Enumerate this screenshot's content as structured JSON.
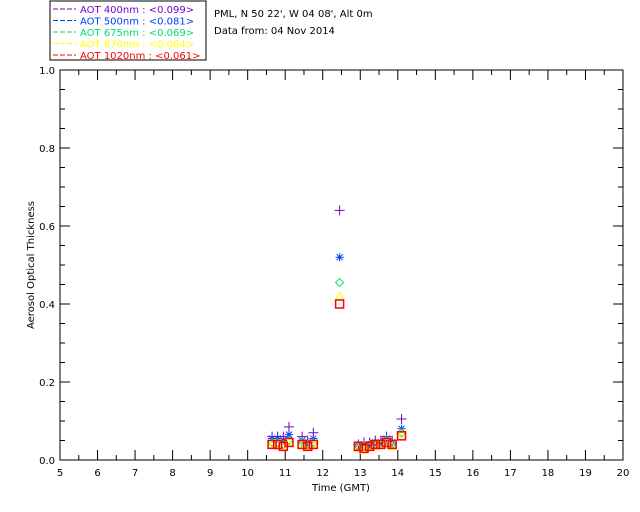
{
  "header": {
    "location": "PML, N 50 22', W 04 08', Alt 0m",
    "date": "Data from: 04 Nov 2014"
  },
  "chart_data": {
    "type": "scatter",
    "title": "",
    "xlabel": "Time (GMT)",
    "ylabel": "Aerosol Optical Thickness",
    "xlim": [
      5,
      20
    ],
    "ylim": [
      0,
      1.0
    ],
    "xticks": [
      "5",
      "6",
      "7",
      "8",
      "9",
      "10",
      "11",
      "12",
      "13",
      "14",
      "15",
      "16",
      "17",
      "18",
      "19",
      "20"
    ],
    "yticks": [
      "0.0",
      "0.2",
      "0.4",
      "0.6",
      "0.8",
      "1.0"
    ],
    "legend_position": "top-left-outside",
    "x": [
      10.65,
      10.8,
      10.95,
      11.1,
      11.45,
      11.6,
      11.75,
      12.45,
      12.95,
      13.1,
      13.25,
      13.4,
      13.55,
      13.7,
      13.85,
      14.1
    ],
    "series": [
      {
        "name": "AOT  400nm : <0.099>",
        "color": "#7a00c8",
        "marker": "plus",
        "values": [
          0.06,
          0.06,
          0.06,
          0.085,
          0.06,
          0.05,
          0.07,
          0.64,
          0.04,
          0.045,
          0.045,
          0.05,
          0.05,
          0.06,
          0.05,
          0.105
        ]
      },
      {
        "name": "AOT  500nm : <0.081>",
        "color": "#0040ff",
        "marker": "asterisk",
        "values": [
          0.055,
          0.055,
          0.05,
          0.065,
          0.05,
          0.045,
          0.055,
          0.52,
          0.04,
          0.04,
          0.04,
          0.045,
          0.045,
          0.055,
          0.045,
          0.08
        ]
      },
      {
        "name": "AOT  675nm : <0.069>",
        "color": "#00e070",
        "marker": "diamond",
        "values": [
          0.045,
          0.045,
          0.04,
          0.05,
          0.045,
          0.04,
          0.045,
          0.455,
          0.035,
          0.035,
          0.04,
          0.04,
          0.04,
          0.05,
          0.04,
          0.07
        ]
      },
      {
        "name": "AOT  870nm : <0.064>",
        "color": "#ffff00",
        "marker": "triangle",
        "values": [
          0.04,
          0.04,
          0.035,
          0.045,
          0.04,
          0.035,
          0.04,
          0.42,
          0.03,
          0.025,
          0.035,
          0.035,
          0.04,
          0.045,
          0.035,
          0.065
        ]
      },
      {
        "name": "AOT 1020nm : <0.061>",
        "color": "#ff0000",
        "marker": "square",
        "values": [
          0.04,
          0.04,
          0.035,
          0.045,
          0.04,
          0.035,
          0.04,
          0.4,
          0.035,
          0.03,
          0.035,
          0.04,
          0.04,
          0.045,
          0.04,
          0.062
        ]
      }
    ]
  }
}
